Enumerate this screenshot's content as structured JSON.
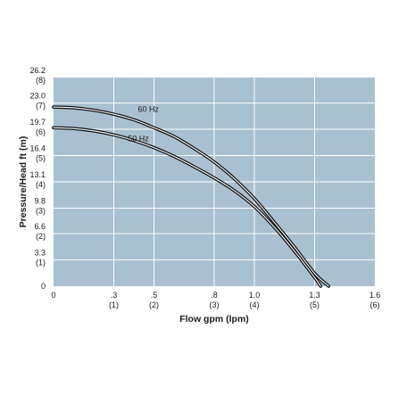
{
  "chart_data": {
    "type": "line",
    "title": "",
    "xlabel": "Flow gpm (lpm)",
    "ylabel": "Pressure/Head ft (m)",
    "xlim": [
      0,
      1.6
    ],
    "ylim": [
      0,
      26.2
    ],
    "grid": true,
    "colors": {
      "plot_bg": "#a9c0d0",
      "grid": "#ffffff",
      "line": "#111111",
      "inner_line": "#ffffff"
    },
    "x_ticks": [
      {
        "value": 0,
        "label": "0",
        "sub": ""
      },
      {
        "value": 0.3,
        "label": ".3",
        "sub": "(1)"
      },
      {
        "value": 0.5,
        "label": ".5",
        "sub": "(2)"
      },
      {
        "value": 0.8,
        "label": ".8",
        "sub": "(3)"
      },
      {
        "value": 1.0,
        "label": "1.0",
        "sub": "(4)"
      },
      {
        "value": 1.3,
        "label": "1.3",
        "sub": "(5)"
      },
      {
        "value": 1.6,
        "label": "1.6",
        "sub": "(6)"
      }
    ],
    "y_ticks": [
      {
        "value": 0,
        "label": "0",
        "sub": ""
      },
      {
        "value": 3.3,
        "label": "3.3",
        "sub": "(1)"
      },
      {
        "value": 6.6,
        "label": "6.6",
        "sub": "(2)"
      },
      {
        "value": 9.8,
        "label": "9.8",
        "sub": "(3)"
      },
      {
        "value": 13.1,
        "label": "13.1",
        "sub": "(4)"
      },
      {
        "value": 16.4,
        "label": "16.4",
        "sub": "(5)"
      },
      {
        "value": 19.7,
        "label": "19.7",
        "sub": "(6)"
      },
      {
        "value": 23.0,
        "label": "23.0",
        "sub": "(7)"
      },
      {
        "value": 26.2,
        "label": "26.2",
        "sub": "(8)"
      }
    ],
    "series": [
      {
        "name": "60 Hz",
        "label_at": [
          0.42,
          21.9
        ],
        "x": [
          0,
          0.1,
          0.2,
          0.3,
          0.4,
          0.5,
          0.6,
          0.7,
          0.8,
          0.9,
          1.0,
          1.1,
          1.2,
          1.3,
          1.37
        ],
        "y": [
          22.5,
          22.4,
          22.1,
          21.6,
          20.9,
          19.9,
          18.8,
          17.3,
          15.6,
          13.5,
          11.0,
          8.0,
          4.9,
          1.6,
          0
        ]
      },
      {
        "name": "50 Hz",
        "label_at": [
          0.37,
          18.2
        ],
        "x": [
          0,
          0.1,
          0.2,
          0.3,
          0.4,
          0.5,
          0.6,
          0.7,
          0.8,
          0.9,
          1.0,
          1.1,
          1.2,
          1.3,
          1.33
        ],
        "y": [
          19.9,
          19.8,
          19.5,
          19.0,
          18.3,
          17.4,
          16.3,
          15.0,
          13.6,
          12.0,
          10.0,
          7.4,
          4.4,
          1.1,
          0
        ]
      }
    ]
  }
}
